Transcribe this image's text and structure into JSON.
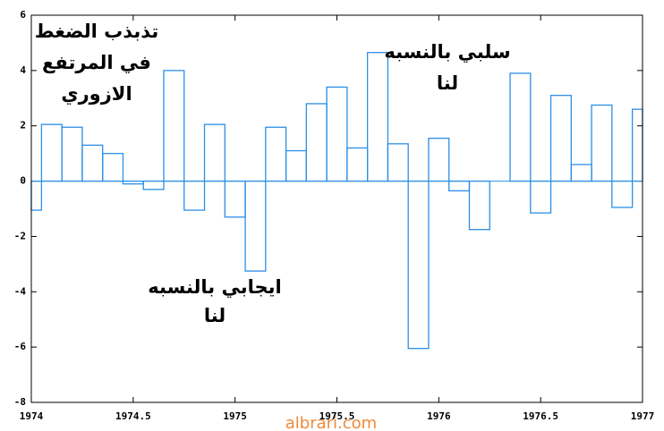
{
  "chart_data": {
    "type": "step",
    "x": [
      1974,
      1974.1,
      1974.2,
      1974.3,
      1974.4,
      1974.5,
      1974.6,
      1974.7,
      1974.8,
      1974.9,
      1975,
      1975.1,
      1975.2,
      1975.3,
      1975.4,
      1975.5,
      1975.6,
      1975.7,
      1975.8,
      1975.9,
      1976,
      1976.1,
      1976.2,
      1976.3,
      1976.4,
      1976.5,
      1976.6,
      1976.7,
      1976.8,
      1976.9,
      1977
    ],
    "values": [
      -1.05,
      2.05,
      1.95,
      1.3,
      1.0,
      -0.1,
      -0.3,
      4.0,
      -1.05,
      2.05,
      -1.3,
      -3.25,
      1.95,
      1.1,
      2.8,
      3.4,
      1.2,
      4.65,
      1.35,
      -6.05,
      1.55,
      -0.35,
      -1.75,
      0,
      3.9,
      -1.15,
      3.1,
      0.6,
      2.75,
      -0.95,
      2.6
    ],
    "color": "#2b8fe6",
    "xlim": [
      1974,
      1977
    ],
    "xticks": [
      1974,
      1974.5,
      1975,
      1975.5,
      1976,
      1976.5,
      1977
    ],
    "ylim": [
      -8,
      6
    ],
    "yticks": [
      -8,
      -6,
      -4,
      -2,
      0,
      2,
      4,
      6
    ],
    "annotations": [
      "تذبذب الضغط",
      "في المرتفع",
      "الازوري",
      "سلبي بالنسبه",
      "لنا",
      "ايجابي بالنسبه",
      "لنا"
    ],
    "watermark": "albrari.com"
  }
}
